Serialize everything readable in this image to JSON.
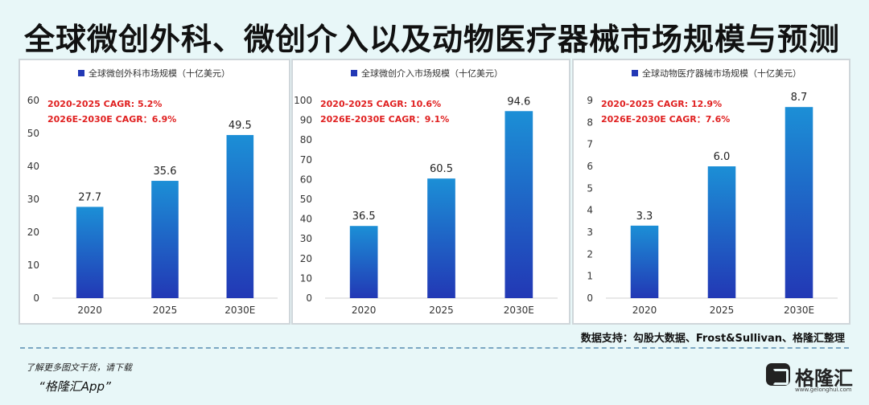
{
  "page": {
    "title": "全球微创外科、微创介入以及动物医疗器械市场规模与预测",
    "source": "数据支持：勾股大数据、Frost&Sullivan、格隆汇整理",
    "promo": "了解更多图文干货，请下载",
    "app_name": "“格隆汇App”",
    "brand": {
      "name": "格隆汇",
      "url": "www.gelonghui.com"
    }
  },
  "colors": {
    "bar_top": "#1c8fd6",
    "bar_bottom": "#2238b5",
    "cagr_text": "#e02020",
    "axis_text": "#333333"
  },
  "chart_data": [
    {
      "type": "bar",
      "legend": "全球微创外科市场规模（十亿美元）",
      "categories": [
        "2020",
        "2025",
        "2030E"
      ],
      "values": [
        27.7,
        35.6,
        49.5
      ],
      "value_labels": [
        "27.7",
        "35.6",
        "49.5"
      ],
      "ylim": [
        0,
        60
      ],
      "yticks": [
        0,
        10,
        20,
        30,
        40,
        50,
        60
      ],
      "annotations": [
        "2020-2025  CAGR:  5.2%",
        "2026E-2030E  CAGR：6.9%"
      ],
      "legend_position": "top",
      "grid": false
    },
    {
      "type": "bar",
      "legend": "全球微创介入市场规模（十亿美元）",
      "categories": [
        "2020",
        "2025",
        "2030E"
      ],
      "values": [
        36.5,
        60.5,
        94.6
      ],
      "value_labels": [
        "36.5",
        "60.5",
        "94.6"
      ],
      "ylim": [
        0,
        100
      ],
      "yticks": [
        0,
        10,
        20,
        30,
        40,
        50,
        60,
        70,
        80,
        90,
        100
      ],
      "annotations": [
        "2020-2025  CAGR:  10.6%",
        "2026E-2030E  CAGR：9.1%"
      ],
      "legend_position": "top",
      "grid": false
    },
    {
      "type": "bar",
      "legend": "全球动物医疗器械市场规模（十亿美元）",
      "categories": [
        "2020",
        "2025",
        "2030E"
      ],
      "values": [
        3.3,
        6.0,
        8.7
      ],
      "value_labels": [
        "3.3",
        "6.0",
        "8.7"
      ],
      "ylim": [
        0,
        9
      ],
      "yticks": [
        0,
        1,
        2,
        3,
        4,
        5,
        6,
        7,
        8,
        9
      ],
      "annotations": [
        "2020-2025  CAGR:  12.9%",
        "2026E-2030E  CAGR：7.6%"
      ],
      "legend_position": "top",
      "grid": false
    }
  ]
}
